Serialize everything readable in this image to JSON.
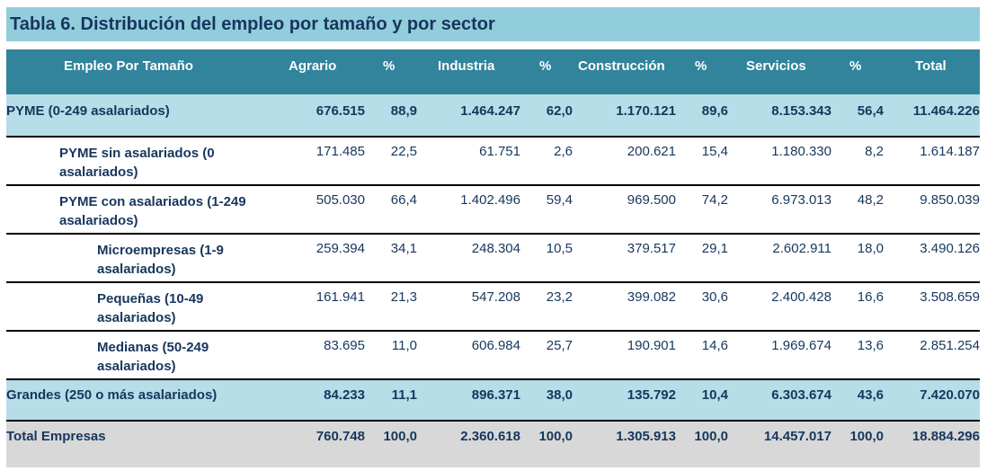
{
  "title": "Tabla 6.  Distribución del empleo por tamaño y por sector",
  "headers": {
    "label": "Empleo Por Tamaño",
    "agrario": "Agrario",
    "pct1": "%",
    "industria": "Industria",
    "pct2": "%",
    "construccion": "Construcción",
    "pct3": "%",
    "servicios": "Servicios",
    "pct4": "%",
    "total": "Total"
  },
  "rows": [
    {
      "label": "PYME (0-249 asalariados)",
      "values": [
        "676.515",
        "88,9",
        "1.464.247",
        "62,0",
        "1.170.121",
        "89,6",
        "8.153.343",
        "56,4",
        "11.464.226"
      ]
    },
    {
      "label": "PYME sin asalariados (0 asalariados)",
      "values": [
        "171.485",
        "22,5",
        "61.751",
        "2,6",
        "200.621",
        "15,4",
        "1.180.330",
        "8,2",
        "1.614.187"
      ]
    },
    {
      "label": "PYME con asalariados (1-249 asalariados)",
      "values": [
        "505.030",
        "66,4",
        "1.402.496",
        "59,4",
        "969.500",
        "74,2",
        "6.973.013",
        "48,2",
        "9.850.039"
      ]
    },
    {
      "label": "Microempresas (1-9 asalariados)",
      "values": [
        "259.394",
        "34,1",
        "248.304",
        "10,5",
        "379.517",
        "29,1",
        "2.602.911",
        "18,0",
        "3.490.126"
      ]
    },
    {
      "label": "Pequeñas (10-49 asalariados)",
      "values": [
        "161.941",
        "21,3",
        "547.208",
        "23,2",
        "399.082",
        "30,6",
        "2.400.428",
        "16,6",
        "3.508.659"
      ]
    },
    {
      "label": "Medianas (50-249 asalariados)",
      "values": [
        "83.695",
        "11,0",
        "606.984",
        "25,7",
        "190.901",
        "14,6",
        "1.969.674",
        "13,6",
        "2.851.254"
      ]
    },
    {
      "label": "Grandes (250 o más asalariados)",
      "values": [
        "84.233",
        "11,1",
        "896.371",
        "38,0",
        "135.792",
        "10,4",
        "6.303.674",
        "43,6",
        "7.420.070"
      ]
    },
    {
      "label": "Total Empresas",
      "values": [
        "760.748",
        "100,0",
        "2.360.618",
        "100,0",
        "1.305.913",
        "100,0",
        "14.457.017",
        "100,0",
        "18.884.296"
      ]
    }
  ]
}
